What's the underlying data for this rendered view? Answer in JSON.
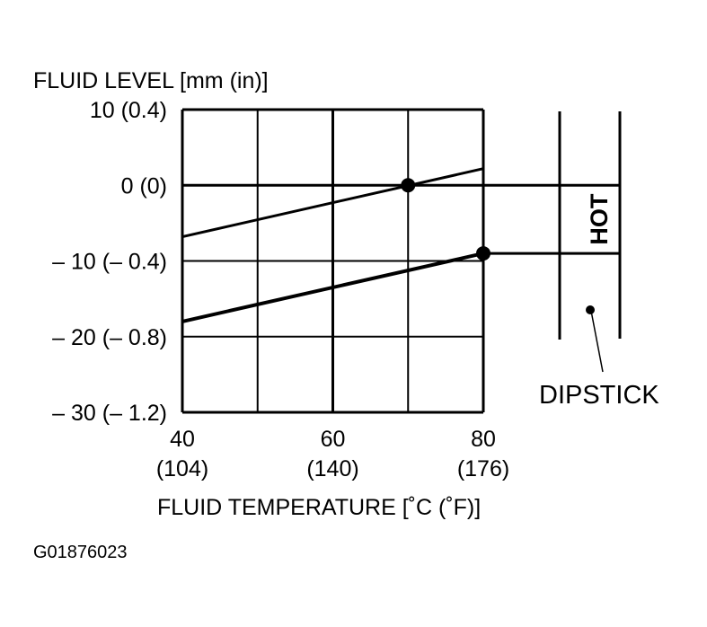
{
  "chart_data": {
    "type": "line",
    "ylabel": "FLUID LEVEL [mm (in)]",
    "xlabel": "FLUID TEMPERATURE [˚C (˚F)]",
    "xlim": [
      40,
      80
    ],
    "ylim": [
      -30,
      10
    ],
    "grid": true,
    "x_grid": [
      40,
      50,
      60,
      70,
      80
    ],
    "y_grid": [
      10,
      0,
      -10,
      -20,
      -30
    ],
    "x_ticks": [
      {
        "value": 40,
        "label": "40",
        "sublabel": "(104)"
      },
      {
        "value": 60,
        "label": "60",
        "sublabel": "(140)"
      },
      {
        "value": 80,
        "label": "80",
        "sublabel": "(176)"
      }
    ],
    "y_ticks": [
      {
        "value": 10,
        "label": "10 (0.4)"
      },
      {
        "value": 0,
        "label": "0 (0)"
      },
      {
        "value": -10,
        "label": "– 10 (– 0.4)"
      },
      {
        "value": -20,
        "label": "– 20 (– 0.8)"
      },
      {
        "value": -30,
        "label": "– 30 (– 1.2)"
      }
    ],
    "series": [
      {
        "points": [
          [
            40,
            -6.8
          ],
          [
            80,
            2.2
          ]
        ],
        "marker": [
          70,
          0
        ]
      },
      {
        "points": [
          [
            40,
            -18
          ],
          [
            80,
            -9
          ]
        ],
        "marker": [
          80,
          -9
        ]
      }
    ],
    "dipstick": {
      "label": "DIPSTICK",
      "band_label": "HOT",
      "band_top": 0,
      "band_bottom": -9
    }
  },
  "figure_id": "G01876023",
  "colors": {
    "ink": "#000000",
    "background": "#ffffff"
  }
}
